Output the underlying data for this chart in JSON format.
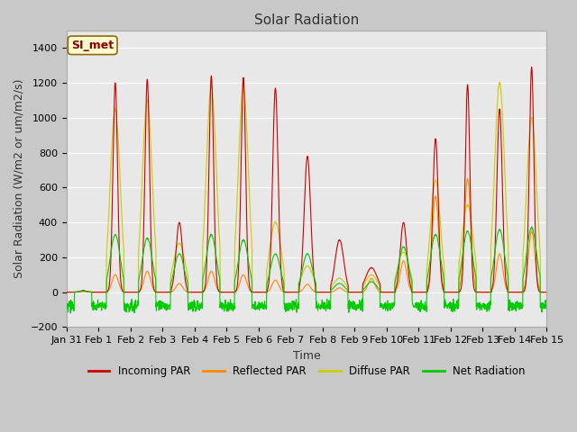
{
  "title": "Solar Radiation",
  "xlabel": "Time",
  "ylabel": "Solar Radiation (W/m2 or um/m2/s)",
  "ylim": [
    -200,
    1500
  ],
  "yticks": [
    -200,
    0,
    200,
    400,
    600,
    800,
    1000,
    1200,
    1400
  ],
  "annotation_text": "SI_met",
  "annotation_bg": "#ffffcc",
  "annotation_border": "#8b6914",
  "annotation_text_color": "#8b0000",
  "x_labels": [
    "Jan 31",
    "Feb 1",
    "Feb 2",
    "Feb 3",
    "Feb 4",
    "Feb 5",
    "Feb 6",
    "Feb 7",
    "Feb 8",
    "Feb 9",
    "Feb 10",
    "Feb 11",
    "Feb 12",
    "Feb 13",
    "Feb 14",
    "Feb 15"
  ],
  "colors": {
    "incoming": "#cc0000",
    "reflected": "#ff8800",
    "diffuse": "#cccc00",
    "net": "#00cc00"
  },
  "legend_labels": [
    "Incoming PAR",
    "Reflected PAR",
    "Diffuse PAR",
    "Net Radiation"
  ],
  "title_fontsize": 11,
  "label_fontsize": 9,
  "tick_fontsize": 8,
  "fig_bg": "#c8c8c8",
  "plot_bg": "#e8e8e8"
}
